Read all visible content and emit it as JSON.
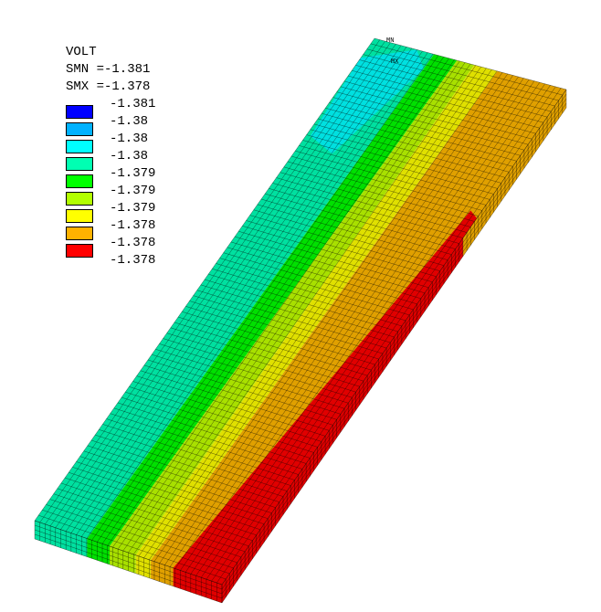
{
  "legend": {
    "title": "VOLT",
    "smn": "SMN =-1.381",
    "smx": "SMX =-1.378",
    "values": [
      "-1.381",
      "-1.38",
      "-1.38",
      "-1.38",
      "-1.379",
      "-1.379",
      "-1.379",
      "-1.378",
      "-1.378",
      "-1.378"
    ],
    "colors": [
      "#0000ff",
      "#00b2ff",
      "#00ffff",
      "#00ffb2",
      "#00ff00",
      "#b2ff00",
      "#ffff00",
      "#ffb200",
      "#ff0000"
    ]
  },
  "markers": {
    "min": "MN",
    "max": "MX"
  },
  "model": {
    "band_colors": {
      "cyan": "#00e0e0",
      "teal": "#00e0a0",
      "green": "#00e000",
      "yellowgreen": "#a8e000",
      "yellow": "#e0e000",
      "orange": "#e0a000",
      "red": "#e00000"
    },
    "mesh_color": "#000000"
  }
}
